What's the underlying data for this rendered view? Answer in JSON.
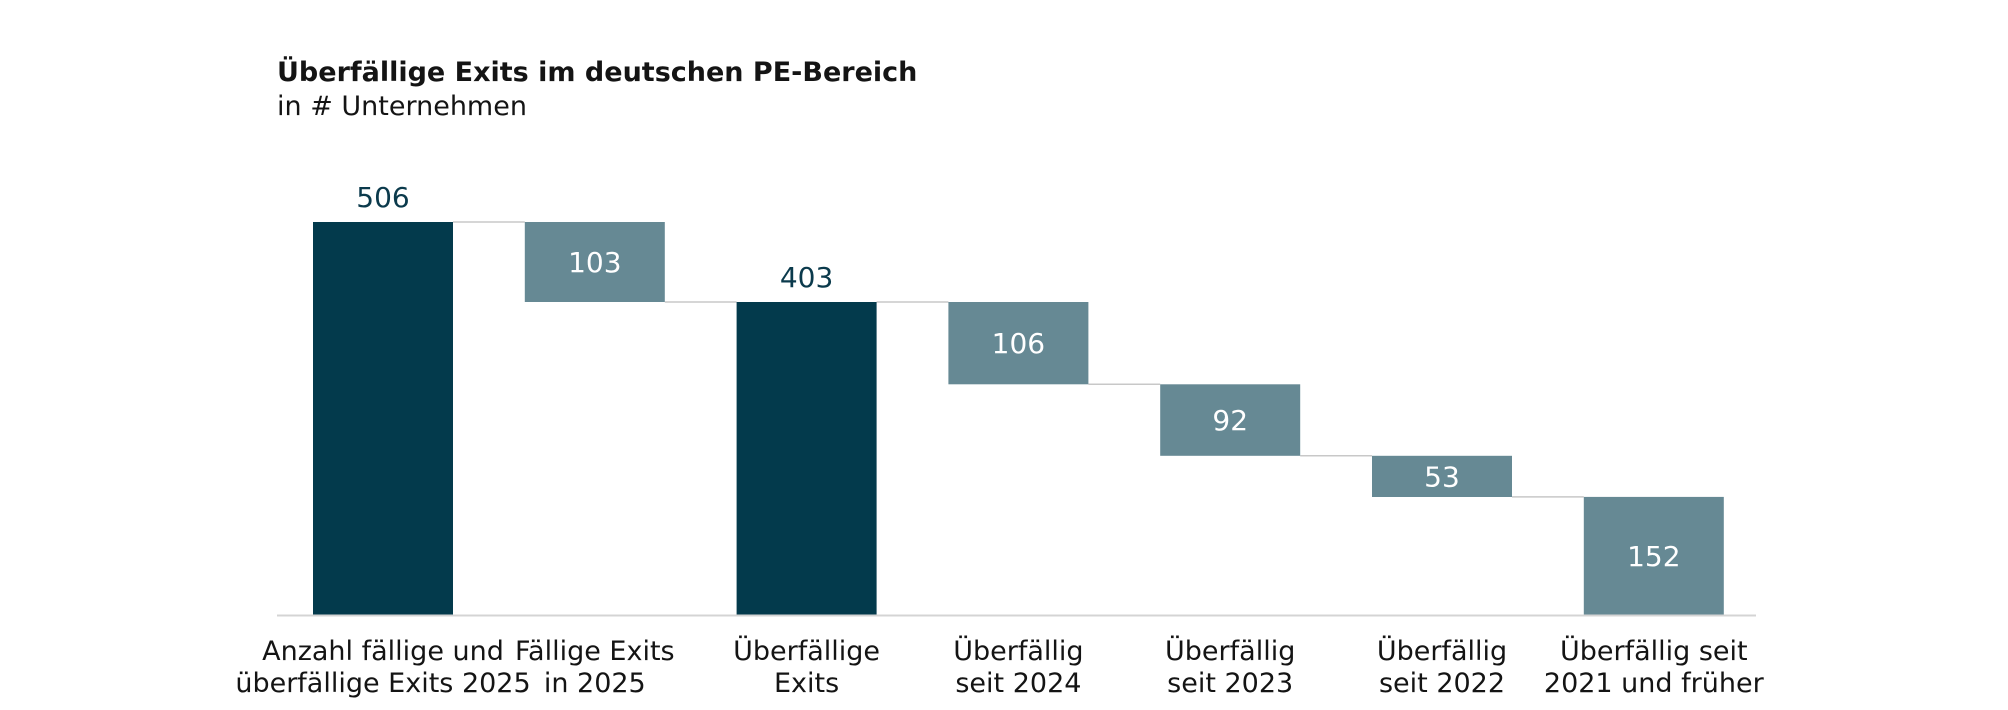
{
  "chart_data": {
    "type": "waterfall",
    "title": "Überfällige Exits im deutschen PE-Bereich",
    "subtitle": "in # Unternehmen",
    "unit": "# Unternehmen",
    "categories": [
      [
        "Anzahl fällige und",
        "überfällige Exits 2025"
      ],
      [
        "Fällige Exits",
        "in 2025"
      ],
      [
        "Überfällige",
        "Exits"
      ],
      [
        "Überfällig",
        "seit 2024"
      ],
      [
        "Überfällig",
        "seit 2023"
      ],
      [
        "Überfällig",
        "seit 2022"
      ],
      [
        "Überfällig seit",
        "2021 und früher"
      ]
    ],
    "values": [
      506,
      103,
      403,
      106,
      92,
      53,
      152
    ],
    "bar_kind": [
      "total",
      "delta",
      "total",
      "delta",
      "delta",
      "delta",
      "delta"
    ],
    "value_labels": [
      "506",
      "103",
      "403",
      "106",
      "92",
      "53",
      "152"
    ],
    "ylim": [
      0,
      506
    ],
    "grid": false,
    "connectors": true,
    "colors": {
      "total": "#033a4c",
      "delta": "#668994",
      "axis": "#d4d4d4",
      "connector": "#c8c8c8",
      "total_label": "#0b3a4c",
      "delta_label": "#ffffff",
      "text": "#141414"
    }
  }
}
